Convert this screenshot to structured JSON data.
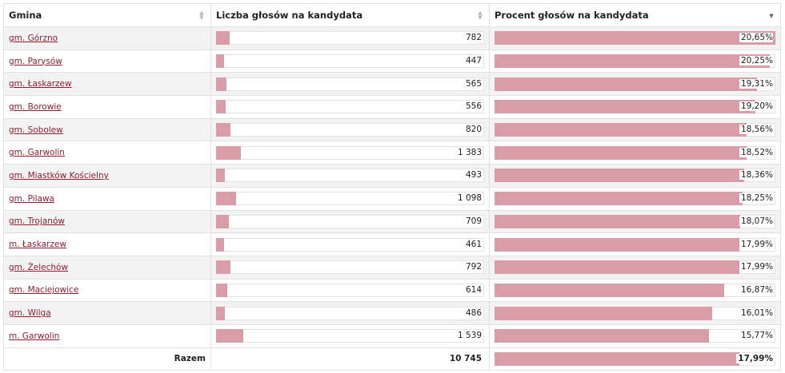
{
  "columns": {
    "gmina": "Gmina",
    "votes": "Liczba głosów na kandydata",
    "percent": "Procent głosów na kandydata"
  },
  "sort_icons": {
    "inactive": "sort-updown-icon",
    "active": "sort-down-icon"
  },
  "bar_color": "#d99da8",
  "link_color": "#8d1f31",
  "rows": [
    {
      "name": "gm. Górzno",
      "votes": "782",
      "votes_n": 782,
      "pct": "20,65%",
      "pct_n": 20.65
    },
    {
      "name": "gm. Parysów",
      "votes": "447",
      "votes_n": 447,
      "pct": "20,25%",
      "pct_n": 20.25
    },
    {
      "name": "gm. Łaskarzew",
      "votes": "565",
      "votes_n": 565,
      "pct": "19,31%",
      "pct_n": 19.31
    },
    {
      "name": "gm. Borowie",
      "votes": "556",
      "votes_n": 556,
      "pct": "19,20%",
      "pct_n": 19.2
    },
    {
      "name": "gm. Sobolew",
      "votes": "820",
      "votes_n": 820,
      "pct": "18,56%",
      "pct_n": 18.56
    },
    {
      "name": "gm. Garwolin",
      "votes": "1 383",
      "votes_n": 1383,
      "pct": "18,52%",
      "pct_n": 18.52
    },
    {
      "name": "gm. Miastków Kościelny",
      "votes": "493",
      "votes_n": 493,
      "pct": "18,36%",
      "pct_n": 18.36
    },
    {
      "name": "gm. Pilawa",
      "votes": "1 098",
      "votes_n": 1098,
      "pct": "18,25%",
      "pct_n": 18.25
    },
    {
      "name": "gm. Trojanów",
      "votes": "709",
      "votes_n": 709,
      "pct": "18,07%",
      "pct_n": 18.07
    },
    {
      "name": "m. Łaskarzew",
      "votes": "461",
      "votes_n": 461,
      "pct": "17,99%",
      "pct_n": 17.99
    },
    {
      "name": "gm. Żelechów",
      "votes": "792",
      "votes_n": 792,
      "pct": "17,99%",
      "pct_n": 17.99
    },
    {
      "name": "gm. Maciejowice",
      "votes": "614",
      "votes_n": 614,
      "pct": "16,87%",
      "pct_n": 16.87
    },
    {
      "name": "gm. Wilga",
      "votes": "486",
      "votes_n": 486,
      "pct": "16,01%",
      "pct_n": 16.01
    },
    {
      "name": "m. Garwolin",
      "votes": "1 539",
      "votes_n": 1539,
      "pct": "15,77%",
      "pct_n": 15.77
    }
  ],
  "scale": {
    "votes_max": 15000,
    "pct_max": 20.65
  },
  "total": {
    "label": "Razem",
    "votes": "10 745",
    "votes_n": 10745,
    "pct": "17,99%",
    "pct_n": 17.99
  }
}
